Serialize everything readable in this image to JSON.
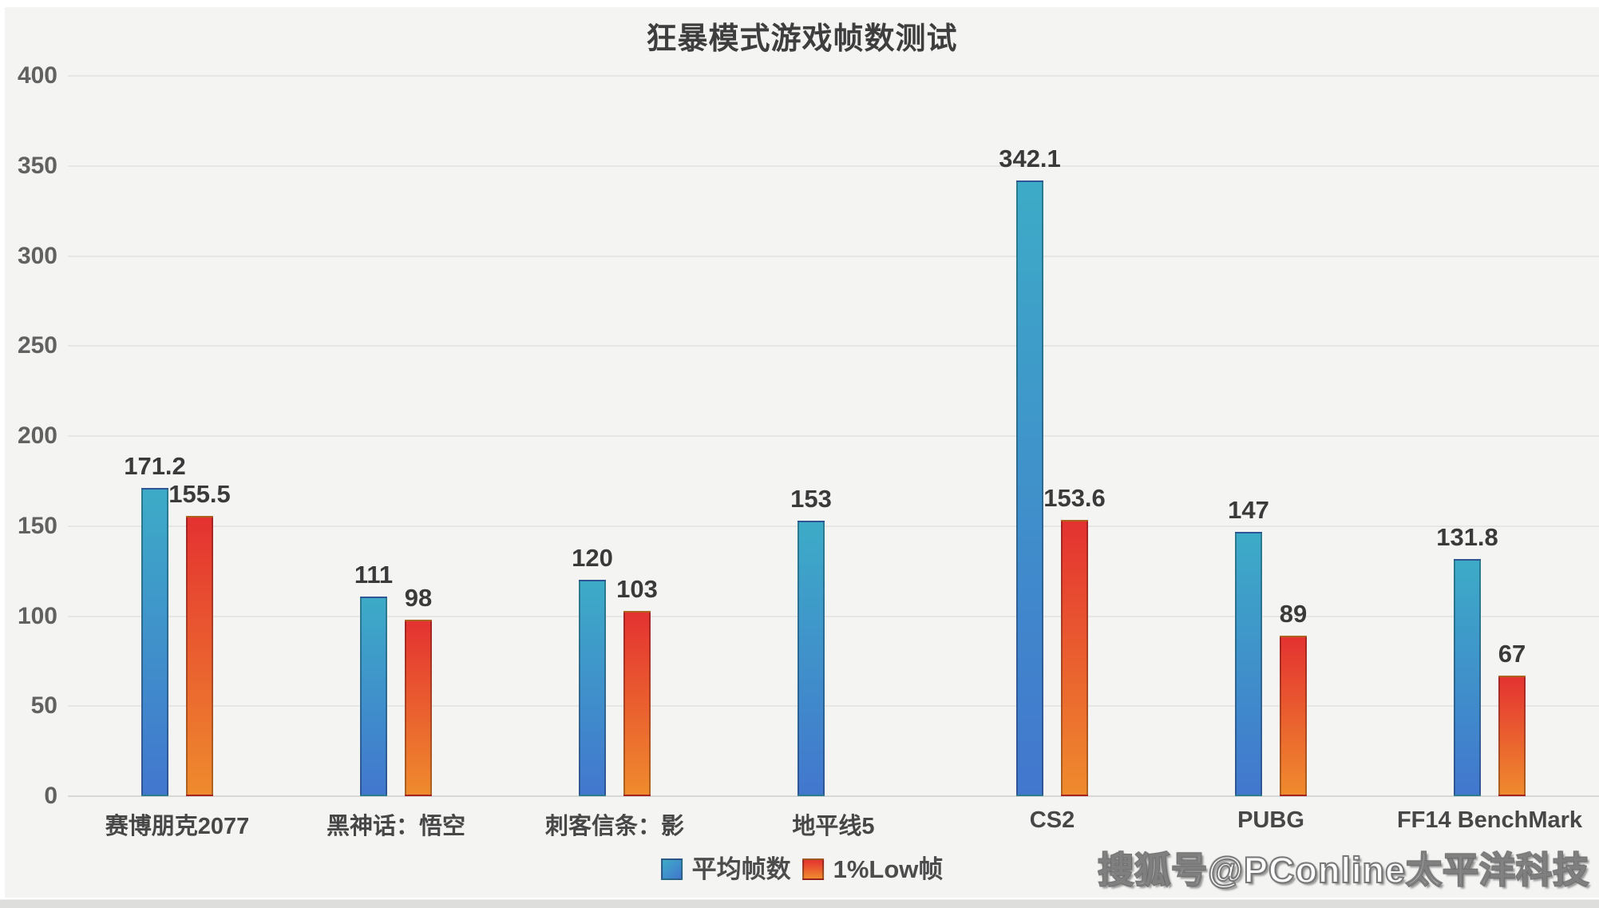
{
  "page": {
    "watermark": "搜狐号@PConline太平洋科技"
  },
  "chart_data": {
    "type": "bar",
    "title": "狂暴模式游戏帧数测试",
    "categories": [
      "赛博朋克2077",
      "黑神话：悟空",
      "刺客信条：影",
      "地平线5",
      "CS2",
      "PUBG",
      "FF14 BenchMark"
    ],
    "series": [
      {
        "name": "平均帧数",
        "values": [
          171.2,
          111,
          120,
          153,
          342.1,
          147,
          131.8
        ],
        "color_top": "#3dabc7",
        "color_bottom": "#4277ce"
      },
      {
        "name": "1%Low帧",
        "values": [
          155.5,
          98,
          103,
          null,
          153.6,
          89,
          67
        ],
        "color_top": "#e43231",
        "color_bottom": "#ef8b2d"
      }
    ],
    "ylim": [
      0,
      400
    ],
    "yticks": [
      0,
      50,
      100,
      150,
      200,
      250,
      300,
      350,
      400
    ],
    "grid": true,
    "legend_position": "bottom"
  }
}
